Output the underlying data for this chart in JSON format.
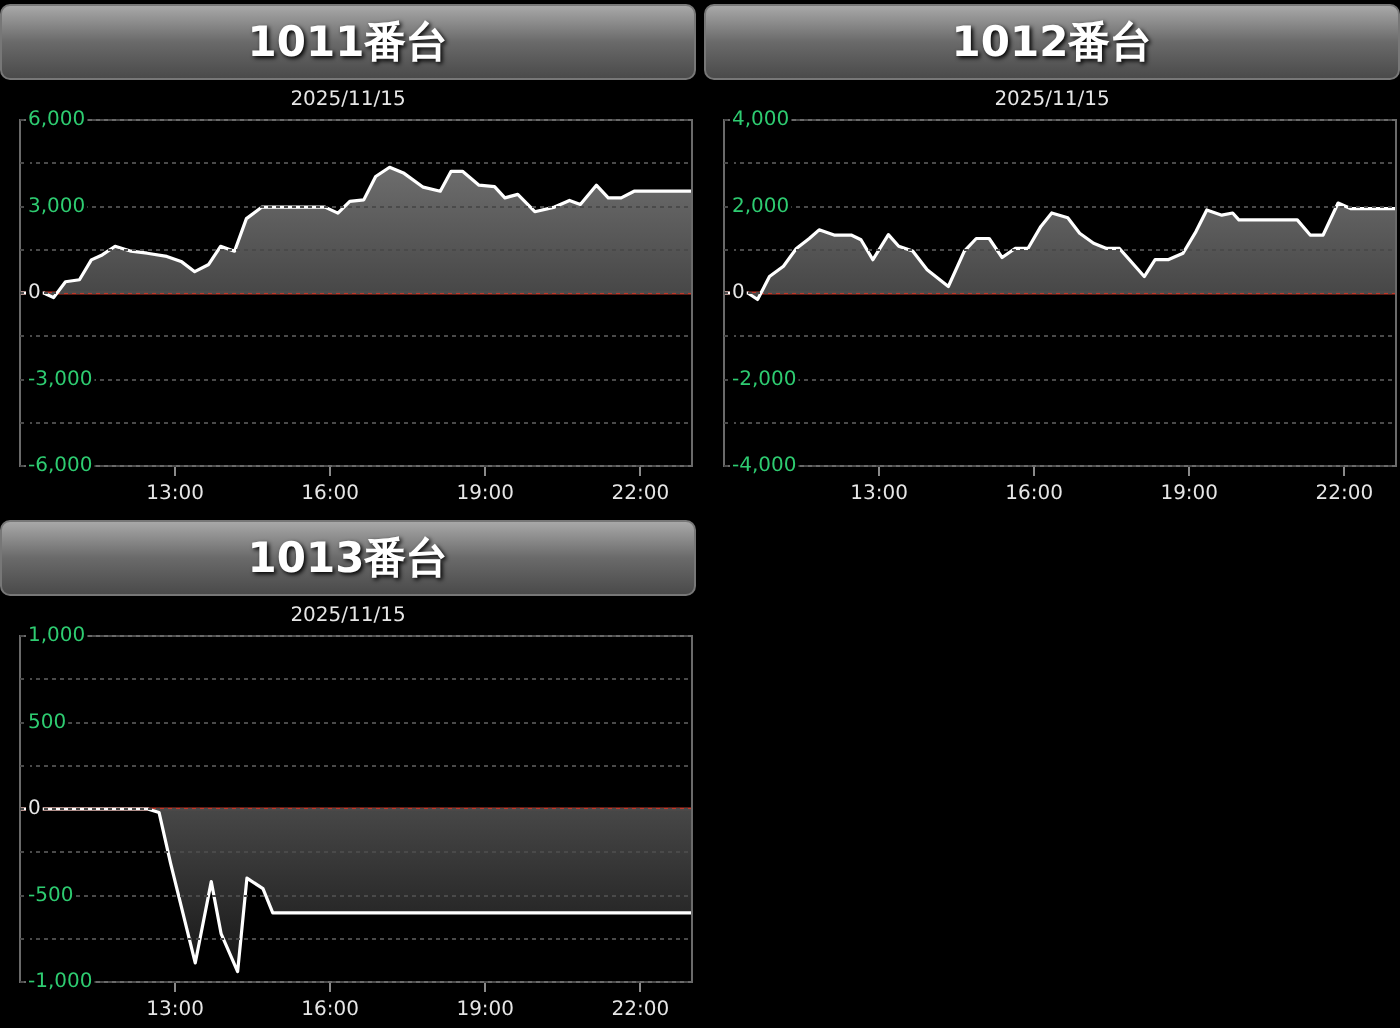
{
  "chart_data": [
    {
      "type": "area",
      "title": "1011番台",
      "subtitle": "2025/11/15",
      "legend": false,
      "grid": "y",
      "marker": "none",
      "line_style": "solid",
      "xlim": [
        10,
        23
      ],
      "xticks": [
        {
          "value": 13,
          "label": "13:00"
        },
        {
          "value": 16,
          "label": "16:00"
        },
        {
          "value": 19,
          "label": "19:00"
        },
        {
          "value": 22,
          "label": "22:00"
        }
      ],
      "ylim": [
        -6000,
        6000
      ],
      "yticks": [
        {
          "value": -6000,
          "label": "-6,000"
        },
        {
          "value": -4500,
          "label": null
        },
        {
          "value": -3000,
          "label": "-3,000"
        },
        {
          "value": -1500,
          "label": null
        },
        {
          "value": 0,
          "label": "0"
        },
        {
          "value": 1500,
          "label": null
        },
        {
          "value": 3000,
          "label": "3,000"
        },
        {
          "value": 4500,
          "label": null
        },
        {
          "value": 6000,
          "label": "6,000"
        }
      ],
      "ref_lines": [
        {
          "axis": "y",
          "value": 0,
          "color": "#c0392b"
        }
      ],
      "x": [
        10,
        10.46,
        10.65,
        10.88,
        11.15,
        11.38,
        11.59,
        11.84,
        12.15,
        12.46,
        12.84,
        13.13,
        13.38,
        13.65,
        13.88,
        14.15,
        14.38,
        14.68,
        15.9,
        16.15,
        16.38,
        16.65,
        16.88,
        17.15,
        17.43,
        17.8,
        18.13,
        18.34,
        18.56,
        18.88,
        19.18,
        19.38,
        19.63,
        19.96,
        20.34,
        20.63,
        20.84,
        21.15,
        21.38,
        21.63,
        21.88,
        23
      ],
      "series": [
        {
          "color": "#ffffff",
          "values": [
            0,
            0,
            -160,
            390,
            460,
            1150,
            1320,
            1620,
            1450,
            1380,
            1270,
            1080,
            740,
            990,
            1620,
            1450,
            2580,
            2980,
            2980,
            2770,
            3180,
            3230,
            4040,
            4360,
            4150,
            3670,
            3530,
            4220,
            4220,
            3740,
            3690,
            3300,
            3420,
            2820,
            2980,
            3210,
            3070,
            3740,
            3300,
            3300,
            3530,
            3530
          ]
        }
      ]
    },
    {
      "type": "area",
      "title": "1012番台",
      "subtitle": "2025/11/15",
      "legend": false,
      "grid": "y",
      "marker": "none",
      "line_style": "solid",
      "xlim": [
        10,
        23
      ],
      "xticks": [
        {
          "value": 13,
          "label": "13:00"
        },
        {
          "value": 16,
          "label": "16:00"
        },
        {
          "value": 19,
          "label": "19:00"
        },
        {
          "value": 22,
          "label": "22:00"
        }
      ],
      "ylim": [
        -4000,
        4000
      ],
      "yticks": [
        {
          "value": -4000,
          "label": "-4,000"
        },
        {
          "value": -3000,
          "label": null
        },
        {
          "value": -2000,
          "label": "-2,000"
        },
        {
          "value": -1000,
          "label": null
        },
        {
          "value": 0,
          "label": "0"
        },
        {
          "value": 1000,
          "label": null
        },
        {
          "value": 2000,
          "label": "2,000"
        },
        {
          "value": 3000,
          "label": null
        },
        {
          "value": 4000,
          "label": "4,000"
        }
      ],
      "ref_lines": [
        {
          "axis": "y",
          "value": 0,
          "color": "#c0392b"
        }
      ],
      "x": [
        10,
        10.46,
        10.65,
        10.88,
        11.15,
        11.4,
        11.65,
        11.84,
        12.13,
        12.46,
        12.65,
        12.88,
        13.18,
        13.38,
        13.65,
        13.93,
        14.34,
        14.65,
        14.88,
        15.13,
        15.38,
        15.63,
        15.88,
        16.13,
        16.34,
        16.65,
        16.88,
        17.15,
        17.4,
        17.65,
        18.13,
        18.34,
        18.59,
        18.88,
        19.13,
        19.34,
        19.63,
        19.84,
        19.96,
        21.09,
        21.34,
        21.59,
        21.88,
        22.13,
        23
      ],
      "series": [
        {
          "color": "#ffffff",
          "values": [
            0,
            0,
            -150,
            380,
            620,
            1030,
            1260,
            1460,
            1340,
            1340,
            1230,
            770,
            1350,
            1080,
            970,
            540,
            150,
            970,
            1260,
            1260,
            820,
            1030,
            1030,
            1540,
            1850,
            1740,
            1380,
            1150,
            1030,
            1030,
            380,
            770,
            770,
            920,
            1420,
            1920,
            1800,
            1850,
            1690,
            1690,
            1340,
            1340,
            2080,
            1950,
            1950
          ]
        }
      ]
    },
    {
      "type": "area",
      "title": "1013番台",
      "subtitle": "2025/11/15",
      "legend": false,
      "grid": "y",
      "marker": "none",
      "line_style": "solid",
      "xlim": [
        10,
        23
      ],
      "xticks": [
        {
          "value": 13,
          "label": "13:00"
        },
        {
          "value": 16,
          "label": "16:00"
        },
        {
          "value": 19,
          "label": "19:00"
        },
        {
          "value": 22,
          "label": "22:00"
        }
      ],
      "ylim": [
        -1000,
        1000
      ],
      "yticks": [
        {
          "value": -1000,
          "label": "-1,000"
        },
        {
          "value": -750,
          "label": null
        },
        {
          "value": -500,
          "label": "-500"
        },
        {
          "value": -250,
          "label": null
        },
        {
          "value": 0,
          "label": "0"
        },
        {
          "value": 250,
          "label": null
        },
        {
          "value": 500,
          "label": "500"
        },
        {
          "value": 750,
          "label": null
        },
        {
          "value": 1000,
          "label": "1,000"
        }
      ],
      "ref_lines": [
        {
          "axis": "y",
          "value": 0,
          "color": "#c0392b"
        }
      ],
      "x": [
        10,
        12.47,
        12.69,
        12.91,
        13.39,
        13.7,
        13.89,
        14.21,
        14.39,
        14.7,
        14.89,
        23
      ],
      "series": [
        {
          "color": "#ffffff",
          "values": [
            0,
            0,
            -20,
            -310,
            -890,
            -420,
            -720,
            -940,
            -400,
            -460,
            -600,
            -600
          ]
        }
      ]
    }
  ]
}
